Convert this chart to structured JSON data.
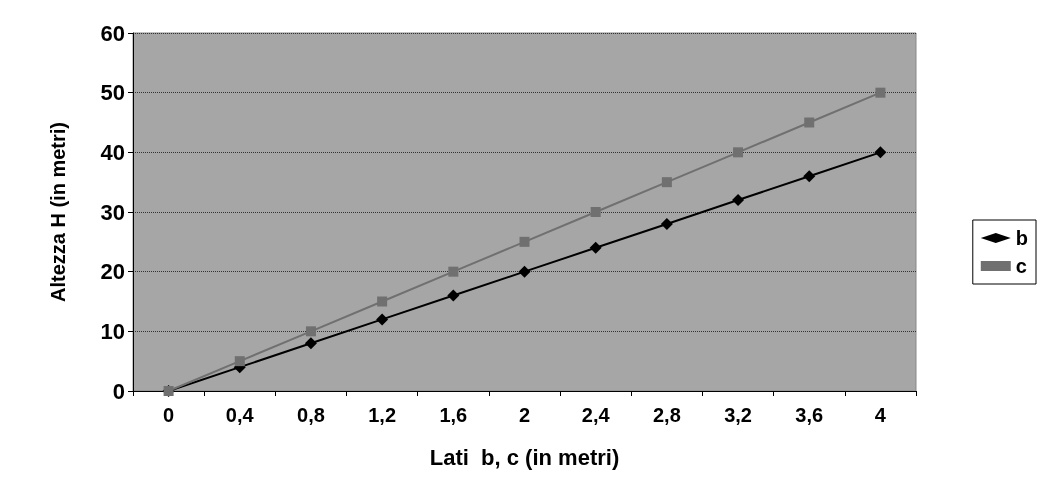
{
  "chart_data": {
    "type": "line",
    "xlabel": "Lati  b, c (in metri)",
    "ylabel": "Altezza H (in metri)",
    "categories": [
      "0",
      "0,4",
      "0,8",
      "1,2",
      "1,6",
      "2",
      "2,4",
      "2,8",
      "3,2",
      "3,6",
      "4"
    ],
    "series": [
      {
        "name": "b",
        "color": "#000000",
        "marker": "diamond",
        "values": [
          0,
          4,
          8,
          12,
          16,
          20,
          24,
          28,
          32,
          36,
          40
        ]
      },
      {
        "name": "c",
        "color": "#707070",
        "marker": "square",
        "values": [
          0,
          5,
          10,
          15,
          20,
          25,
          30,
          35,
          40,
          45,
          50
        ]
      }
    ],
    "ylim": [
      0,
      60
    ],
    "yticks": [
      0,
      10,
      20,
      30,
      40,
      50,
      60
    ],
    "grid": "y",
    "legend": "right",
    "line_style": "solid"
  }
}
